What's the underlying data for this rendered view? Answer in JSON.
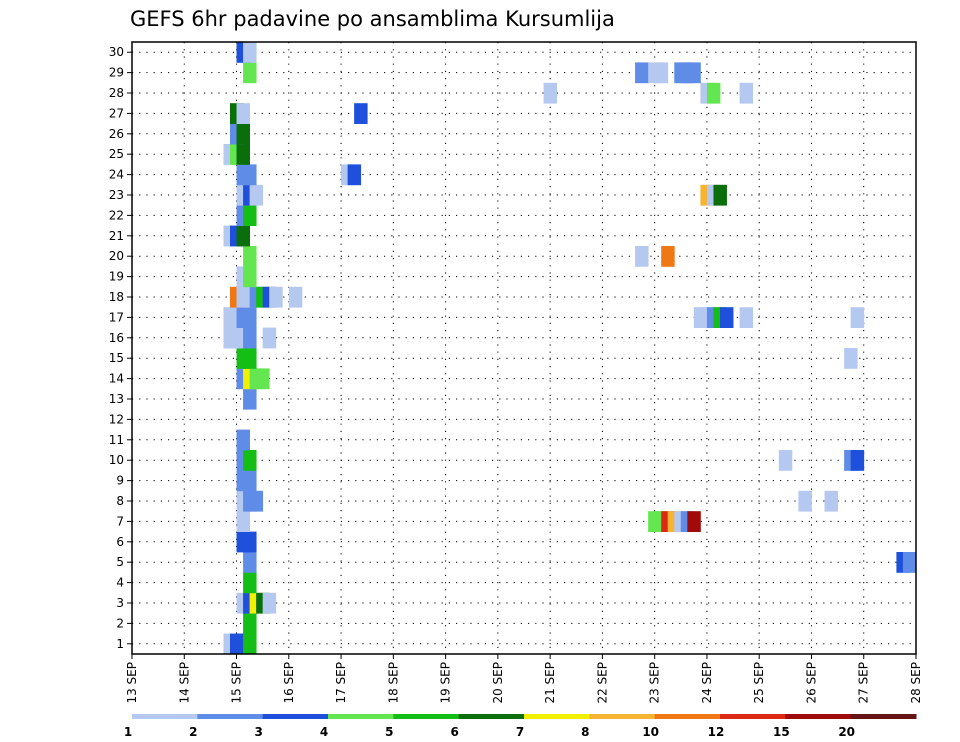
{
  "chart_data": {
    "type": "heatmap",
    "title": "GEFS 6hr padavine po ansamblima Kursumlija",
    "x_tick_labels": [
      "13 SEP",
      "14 SEP",
      "15 SEP",
      "16 SEP",
      "17 SEP",
      "18 SEP",
      "19 SEP",
      "20 SEP",
      "21 SEP",
      "22 SEP",
      "23 SEP",
      "24 SEP",
      "25 SEP",
      "26 SEP",
      "27 SEP",
      "28 SEP"
    ],
    "y_tick_labels": [
      "1",
      "2",
      "3",
      "4",
      "5",
      "6",
      "7",
      "8",
      "9",
      "10",
      "11",
      "12",
      "13",
      "14",
      "15",
      "16",
      "17",
      "18",
      "19",
      "20",
      "21",
      "22",
      "23",
      "24",
      "25",
      "26",
      "27",
      "28",
      "29",
      "30"
    ],
    "x_range_days": [
      13,
      28
    ],
    "y_range_members": [
      1,
      30
    ],
    "grid": "dotted",
    "steps_per_day": 4,
    "legend": {
      "placement": "bottom",
      "labels": [
        "1",
        "2",
        "3",
        "4",
        "5",
        "6",
        "7",
        "8",
        "10",
        "12",
        "15",
        "20"
      ],
      "colors": [
        "#b4c8f0",
        "#5f8ce6",
        "#1e50dc",
        "#64e650",
        "#14be14",
        "#0a6e0a",
        "#f0f000",
        "#f5b432",
        "#f07814",
        "#dc2814",
        "#a00a0a",
        "#641414"
      ]
    },
    "cells": [
      {
        "m": 1,
        "t": [
          [
            14.75,
            0
          ],
          [
            14.875,
            2
          ],
          [
            15.0,
            2
          ],
          [
            15.125,
            4
          ]
        ]
      },
      {
        "m": 2,
        "t": [
          [
            15.125,
            4
          ]
        ]
      },
      {
        "m": 3,
        "t": [
          [
            15.0,
            0
          ],
          [
            15.125,
            2
          ],
          [
            15.25,
            6
          ],
          [
            15.375,
            5
          ],
          [
            15.5,
            0
          ]
        ]
      },
      {
        "m": 4,
        "t": [
          [
            15.125,
            4
          ]
        ]
      },
      {
        "m": 5,
        "t": [
          [
            15.125,
            1
          ],
          [
            27.625,
            2
          ],
          [
            27.75,
            1
          ]
        ]
      },
      {
        "m": 6,
        "t": [
          [
            15.0,
            2
          ],
          [
            15.125,
            2
          ]
        ]
      },
      {
        "m": 7,
        "t": [
          [
            15.0,
            0
          ],
          [
            22.875,
            3
          ],
          [
            23.0,
            3
          ],
          [
            23.125,
            9
          ],
          [
            23.25,
            7
          ],
          [
            23.375,
            0
          ],
          [
            23.5,
            1
          ],
          [
            23.625,
            10
          ]
        ]
      },
      {
        "m": 8,
        "t": [
          [
            15.0,
            0
          ],
          [
            15.125,
            1
          ],
          [
            15.25,
            1
          ],
          [
            25.75,
            0
          ],
          [
            26.25,
            0
          ]
        ]
      },
      {
        "m": 9,
        "t": [
          [
            15.0,
            1
          ],
          [
            15.125,
            1
          ]
        ]
      },
      {
        "m": 10,
        "t": [
          [
            15.0,
            1
          ],
          [
            15.125,
            4
          ],
          [
            25.375,
            0
          ],
          [
            26.625,
            1
          ],
          [
            26.75,
            2
          ]
        ]
      },
      {
        "m": 11,
        "t": [
          [
            15.0,
            1
          ]
        ]
      },
      {
        "m": 13,
        "t": [
          [
            15.125,
            1
          ]
        ]
      },
      {
        "m": 14,
        "t": [
          [
            15.0,
            1
          ],
          [
            15.125,
            6
          ],
          [
            15.25,
            3
          ],
          [
            15.375,
            3
          ]
        ]
      },
      {
        "m": 15,
        "t": [
          [
            15.0,
            4
          ],
          [
            15.125,
            4
          ],
          [
            26.625,
            0
          ]
        ]
      },
      {
        "m": 16,
        "t": [
          [
            14.75,
            0
          ],
          [
            14.875,
            0
          ],
          [
            15.0,
            0
          ],
          [
            15.125,
            1
          ],
          [
            15.5,
            0
          ]
        ]
      },
      {
        "m": 17,
        "t": [
          [
            14.75,
            0
          ],
          [
            14.875,
            0
          ],
          [
            15.0,
            1
          ],
          [
            15.125,
            1
          ],
          [
            23.75,
            0
          ],
          [
            23.875,
            0
          ],
          [
            24.0,
            1
          ],
          [
            24.125,
            4
          ],
          [
            24.25,
            2
          ],
          [
            24.625,
            0
          ],
          [
            26.75,
            0
          ]
        ]
      },
      {
        "m": 18,
        "t": [
          [
            14.875,
            8
          ],
          [
            15.0,
            0
          ],
          [
            15.125,
            0
          ],
          [
            15.25,
            1
          ],
          [
            15.375,
            4
          ],
          [
            15.5,
            2
          ],
          [
            15.625,
            0
          ],
          [
            16.0,
            0
          ]
        ]
      },
      {
        "m": 19,
        "t": [
          [
            15.0,
            0
          ],
          [
            15.125,
            3
          ]
        ]
      },
      {
        "m": 20,
        "t": [
          [
            15.125,
            3
          ],
          [
            22.625,
            0
          ],
          [
            23.125,
            8
          ]
        ]
      },
      {
        "m": 21,
        "t": [
          [
            14.75,
            0
          ],
          [
            14.875,
            2
          ],
          [
            15.0,
            5
          ]
        ]
      },
      {
        "m": 22,
        "t": [
          [
            15.0,
            1
          ],
          [
            15.125,
            4
          ]
        ]
      },
      {
        "m": 23,
        "t": [
          [
            15.0,
            0
          ],
          [
            15.125,
            2
          ],
          [
            15.25,
            0
          ],
          [
            23.875,
            7
          ],
          [
            24.0,
            0
          ],
          [
            24.125,
            5
          ]
        ]
      },
      {
        "m": 24,
        "t": [
          [
            15.0,
            1
          ],
          [
            15.125,
            1
          ],
          [
            17.0,
            0
          ],
          [
            17.125,
            2
          ]
        ]
      },
      {
        "m": 25,
        "t": [
          [
            14.75,
            0
          ],
          [
            14.875,
            3
          ],
          [
            15.0,
            5
          ]
        ]
      },
      {
        "m": 26,
        "t": [
          [
            14.875,
            1
          ],
          [
            15.0,
            5
          ]
        ]
      },
      {
        "m": 27,
        "t": [
          [
            14.875,
            5
          ],
          [
            15.0,
            0
          ],
          [
            17.25,
            2
          ]
        ]
      },
      {
        "m": 28,
        "t": [
          [
            20.875,
            0
          ],
          [
            23.875,
            0
          ],
          [
            24.0,
            3
          ],
          [
            24.625,
            0
          ]
        ]
      },
      {
        "m": 29,
        "t": [
          [
            15.125,
            3
          ],
          [
            22.625,
            1
          ],
          [
            22.875,
            0
          ],
          [
            23.0,
            0
          ],
          [
            23.375,
            1
          ],
          [
            23.5,
            1
          ],
          [
            23.625,
            1
          ]
        ]
      },
      {
        "m": 30,
        "t": [
          [
            15.0,
            2
          ],
          [
            15.125,
            0
          ]
        ]
      }
    ]
  }
}
